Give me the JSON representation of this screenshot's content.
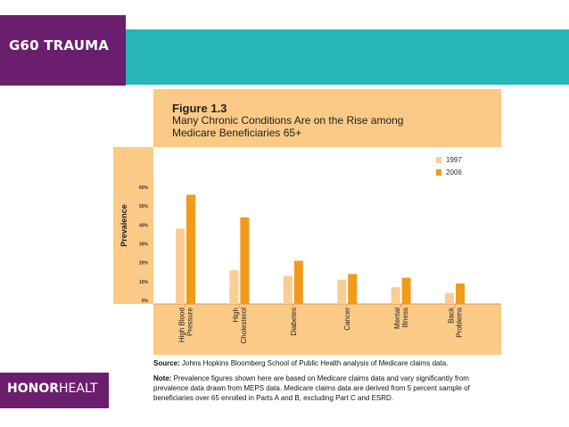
{
  "slide": {
    "title": "G60 TRAUMA",
    "brand_bold": "HONOR",
    "brand_rest": "HEALT"
  },
  "figure": {
    "number": "Figure 1.3",
    "subtitle_line1": "Many Chronic Conditions Are on the Rise among",
    "subtitle_line2": "Medicare Beneficiaries 65+",
    "source_label": "Source:",
    "source_text": " Johns Hopkins Bloomberg School of Public Health analysis of Medicare claims data.",
    "note_label": "Note:",
    "note_text": " Prevalence figures shown here are based on Medicare claims data and vary significantly from prevalence data drawn from MEPS data. Medicare claims data are derived from 5 percent sample of beneficiaries over 65 enrolled in Parts A and B, excluding Part C and ESRD."
  },
  "colors": {
    "series_1997": "#fbcc94",
    "series_2006": "#f29a1a",
    "header_purple": "#6b1e6e",
    "header_teal": "#27b6b8",
    "panel": "#fbca86"
  },
  "chart_data": {
    "type": "bar",
    "title": "Many Chronic Conditions Are on the Rise among Medicare Beneficiaries 65+",
    "xlabel": "",
    "ylabel": "Prevalence",
    "ylim": [
      0,
      60
    ],
    "yticks": [
      "0%",
      "10%",
      "20%",
      "30%",
      "40%",
      "50%",
      "60%"
    ],
    "categories": [
      [
        "High Blood",
        "Pressure"
      ],
      [
        "High",
        "Cholesterol"
      ],
      [
        "Diabetes"
      ],
      [
        "Cancer"
      ],
      [
        "Mental",
        "Illness"
      ],
      [
        "Back",
        "Problems"
      ]
    ],
    "series": [
      {
        "name": "1997",
        "values": [
          38,
          16,
          13,
          11,
          7,
          4
        ]
      },
      {
        "name": "2006",
        "values": [
          56,
          44,
          21,
          14,
          12,
          9
        ]
      }
    ],
    "legend": "top-right"
  }
}
